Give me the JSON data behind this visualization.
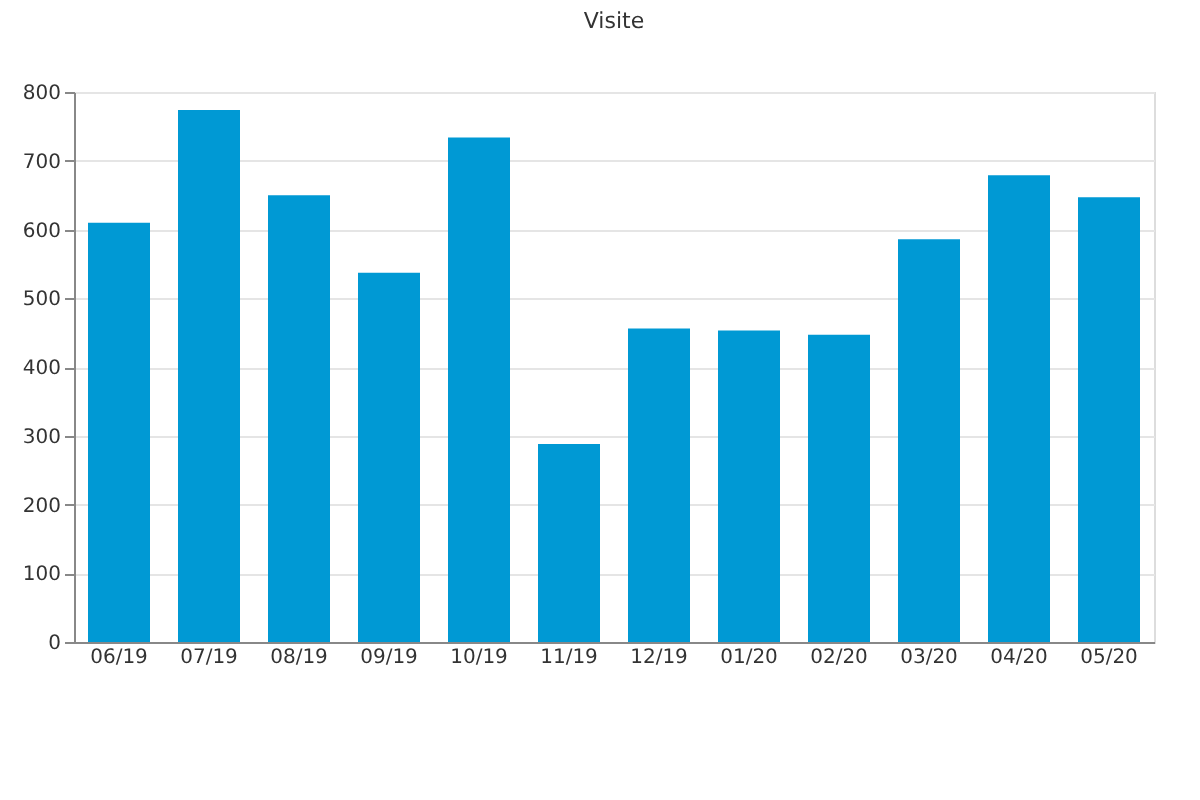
{
  "chart_data": {
    "type": "bar",
    "title": "Visite",
    "categories": [
      "06/19",
      "07/19",
      "08/19",
      "09/19",
      "10/19",
      "11/19",
      "12/19",
      "01/20",
      "02/20",
      "03/20",
      "04/20",
      "05/20"
    ],
    "values": [
      610,
      774,
      650,
      537,
      734,
      288,
      456,
      453,
      447,
      586,
      679,
      647
    ],
    "color": "#0099d4",
    "ylim": [
      0,
      800
    ],
    "yticks": [
      0,
      100,
      200,
      300,
      400,
      500,
      600,
      700,
      800
    ],
    "grid": "y"
  }
}
